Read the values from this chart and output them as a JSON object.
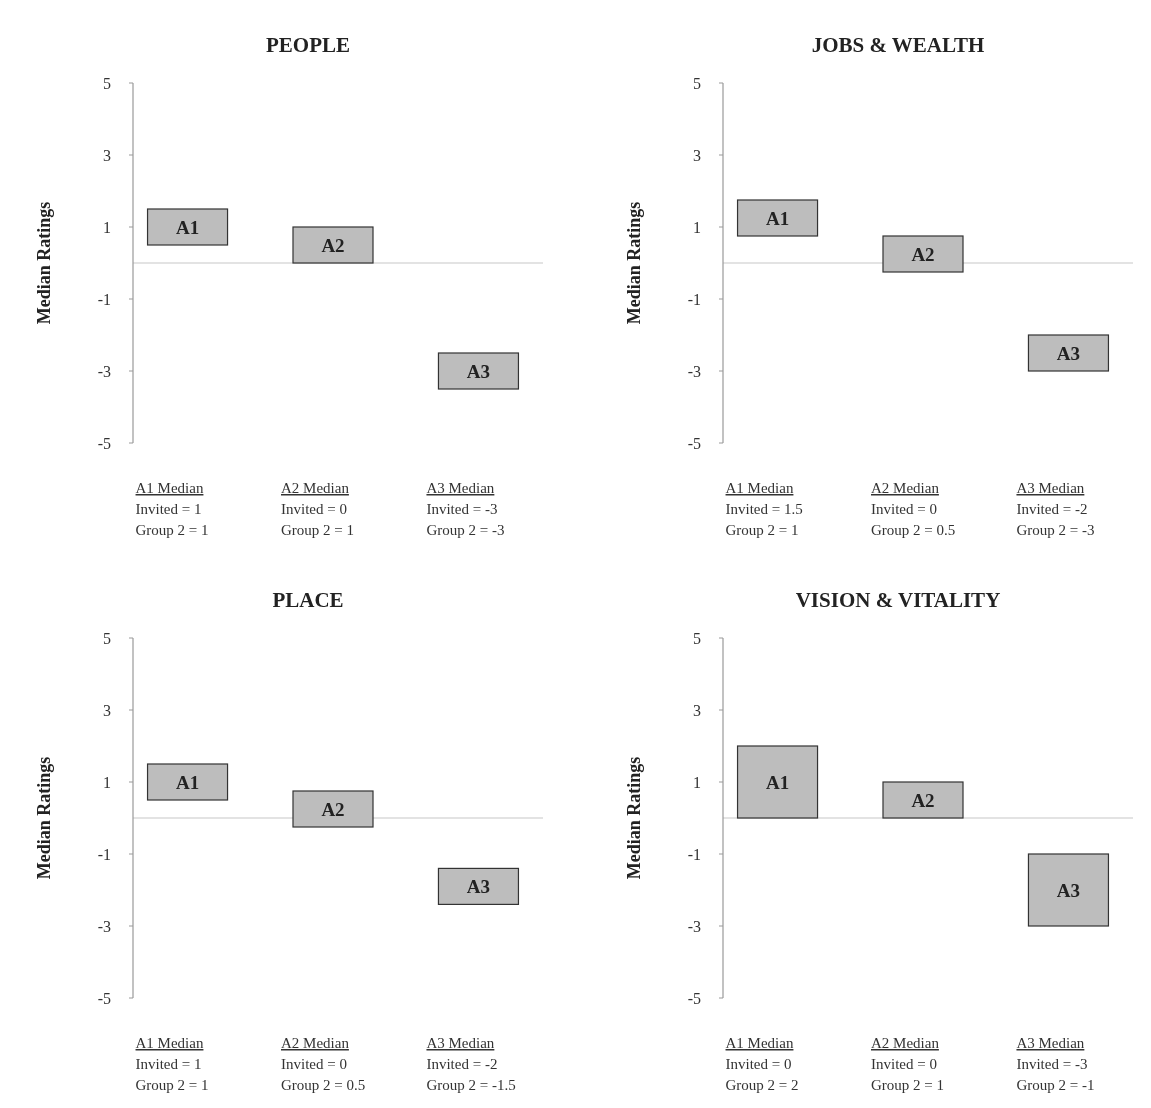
{
  "chart_data": [
    {
      "type": "bar",
      "title": "PEOPLE",
      "ylabel": "Median Ratings",
      "categories": [
        "A1",
        "A2",
        "A3"
      ],
      "base": [
        0.5,
        0,
        -3.5
      ],
      "values": [
        1,
        1,
        1
      ],
      "color": "#bdbdbd",
      "ylim": [
        -5,
        5
      ],
      "yticks": [
        5,
        3,
        1,
        -1,
        -3,
        -5
      ],
      "ref_lines": [
        {
          "axis": "y",
          "value": 0,
          "color": "#c8c8c8"
        }
      ],
      "annotations": [
        "A1 Median\nInvited = 1\nGroup 2 = 1",
        "A2 Median\nInvited = 0\nGroup 2 = 1",
        "A3 Median\nInvited = -3\nGroup 2 = -3"
      ]
    },
    {
      "type": "bar",
      "title": "JOBS & WEALTH",
      "ylabel": "Median Ratings",
      "categories": [
        "A1",
        "A2",
        "A3"
      ],
      "base": [
        0.75,
        -0.25,
        -3
      ],
      "values": [
        1,
        1,
        1
      ],
      "color": "#bdbdbd",
      "ylim": [
        -5,
        5
      ],
      "yticks": [
        5,
        3,
        1,
        -1,
        -3,
        -5
      ],
      "ref_lines": [
        {
          "axis": "y",
          "value": 0,
          "color": "#c8c8c8"
        }
      ],
      "annotations": [
        "A1 Median\nInvited = 1.5\nGroup 2 = 1",
        "A2 Median\nInvited = 0\nGroup 2 = 0.5",
        "A3 Median\nInvited = -2\nGroup 2 = -3"
      ]
    },
    {
      "type": "bar",
      "title": "PLACE",
      "ylabel": "Median Ratings",
      "categories": [
        "A1",
        "A2",
        "A3"
      ],
      "base": [
        0.5,
        -0.25,
        -2.4
      ],
      "values": [
        1,
        1,
        1
      ],
      "color": "#bdbdbd",
      "ylim": [
        -5,
        5
      ],
      "yticks": [
        5,
        3,
        1,
        -1,
        -3,
        -5
      ],
      "ref_lines": [
        {
          "axis": "y",
          "value": 0,
          "color": "#c8c8c8"
        }
      ],
      "annotations": [
        "A1 Median\nInvited = 1\nGroup 2 = 1",
        "A2 Median\nInvited = 0\nGroup 2 = 0.5",
        "A3 Median\nInvited = -2\nGroup 2 = -1.5"
      ]
    },
    {
      "type": "bar",
      "title": "VISION & VITALITY",
      "ylabel": "Median Ratings",
      "categories": [
        "A1",
        "A2",
        "A3"
      ],
      "base": [
        0,
        0,
        -3
      ],
      "values": [
        2,
        1,
        2
      ],
      "color": "#bdbdbd",
      "ylim": [
        -5,
        5
      ],
      "yticks": [
        5,
        3,
        1,
        -1,
        -3,
        -5
      ],
      "ref_lines": [
        {
          "axis": "y",
          "value": 0,
          "color": "#c8c8c8"
        }
      ],
      "annotations": [
        "A1 Median\nInvited = 0\nGroup 2 = 2",
        "A2 Median\nInvited = 0\nGroup 2 = 1",
        "A3 Median\nInvited = -3\nGroup 2 = -1"
      ]
    }
  ]
}
